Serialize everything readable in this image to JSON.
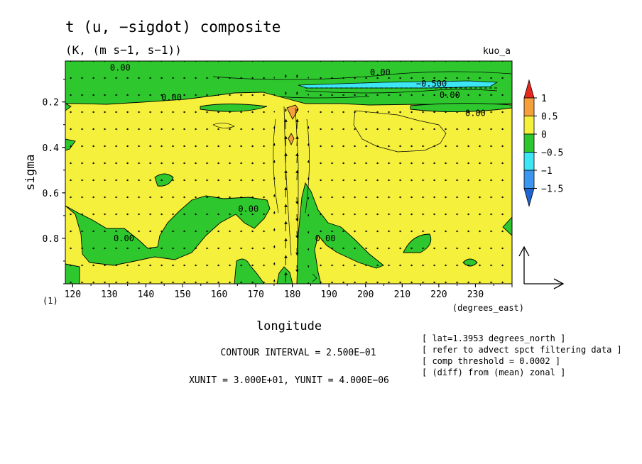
{
  "chart_data": {
    "type": "heatmap",
    "title": "t (u, −sigdot) composite",
    "subtitle": "(K, (m s−1, s−1))",
    "tag": "kuo_a",
    "xlabel": "longitude",
    "xunits": "(degrees_east)",
    "ylabel": "sigma",
    "yunits": "(1)",
    "xlim": [
      118,
      240
    ],
    "ylim": [
      0.02,
      1.0
    ],
    "yreversed": true,
    "x_ticks": [
      120,
      130,
      140,
      150,
      160,
      170,
      180,
      190,
      200,
      210,
      220,
      230
    ],
    "x_tick_labels": [
      "120",
      "130",
      "140",
      "150",
      "160",
      "170",
      "180",
      "190",
      "200",
      "210",
      "220",
      "230"
    ],
    "y_ticks": [
      0.2,
      0.4,
      0.6,
      0.8
    ],
    "y_tick_labels": [
      "0.2",
      "0.4",
      "0.6",
      "0.8"
    ],
    "colorbar": {
      "labels": [
        "1",
        "0.5",
        "0",
        "−0.5",
        "−1",
        "−1.5"
      ],
      "bins": [
        {
          "range": [
            1.0,
            1.5
          ],
          "color": "#e8271e"
        },
        {
          "range": [
            0.5,
            1.0
          ],
          "color": "#f5a03c"
        },
        {
          "range": [
            0.0,
            0.5
          ],
          "color": "#f5f03c"
        },
        {
          "range": [
            -0.5,
            0.0
          ],
          "color": "#2ec82e"
        },
        {
          "range": [
            -1.0,
            -0.5
          ],
          "color": "#3ce6f5"
        },
        {
          "range": [
            -1.5,
            -1.0
          ],
          "color": "#3c96f0"
        },
        {
          "range": [
            -2.0,
            -1.5
          ],
          "color": "#1e64d2"
        }
      ]
    },
    "contour_labels": [
      {
        "text": "0.00",
        "lon": 133,
        "sigma": 0.05
      },
      {
        "text": "0.00",
        "lon": 204,
        "sigma": 0.07
      },
      {
        "text": "−0.500",
        "lon": 218,
        "sigma": 0.12
      },
      {
        "text": "0.00",
        "lon": 223,
        "sigma": 0.17
      },
      {
        "text": "0.00",
        "lon": 147,
        "sigma": 0.18
      },
      {
        "text": "0.00",
        "lon": 230,
        "sigma": 0.25
      },
      {
        "text": "0.00",
        "lon": 168,
        "sigma": 0.67
      },
      {
        "text": "0.00",
        "lon": 134,
        "sigma": 0.8
      },
      {
        "text": "0.00",
        "lon": 189,
        "sigma": 0.8
      }
    ],
    "vector_reference": {
      "xunit": "3.000E+01",
      "yunit": "4.000E−06"
    },
    "contour_interval": "2.500E−01",
    "info": {
      "contour_text": "CONTOUR INTERVAL = 2.500E−01",
      "unit_text": "XUNIT = 3.000E+01, YUNIT = 4.000E−06",
      "notes": [
        "[ lat=1.3953 degrees_north ]",
        "[ refer to advect spct filtering data ]",
        "[ comp threshold = 0.0002 ]",
        "[ (diff) from (mean) zonal ]"
      ]
    },
    "grid": false,
    "legend_position": "right"
  }
}
